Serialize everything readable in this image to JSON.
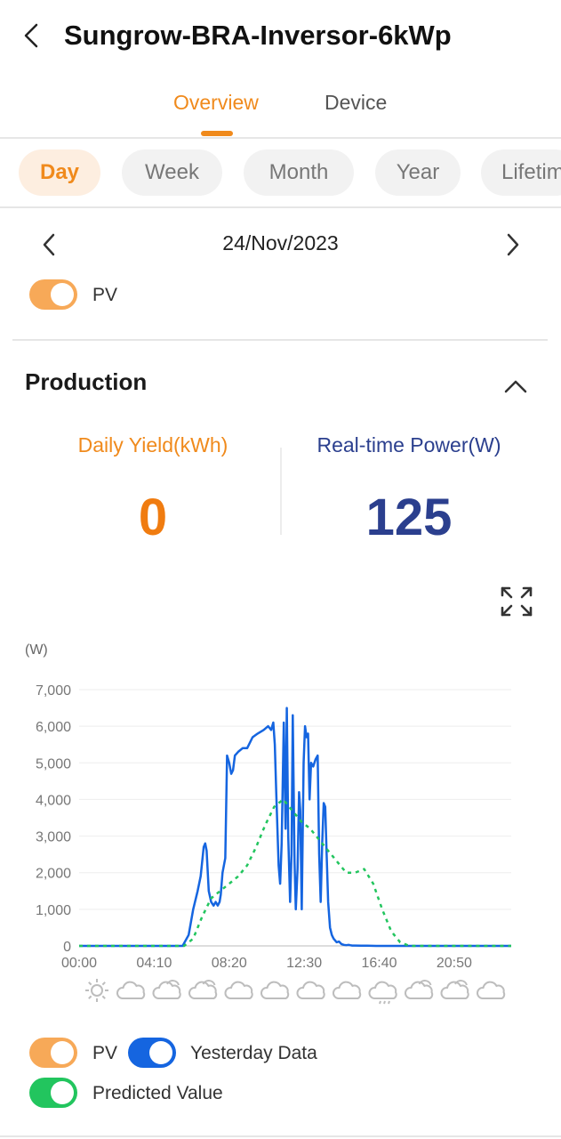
{
  "header": {
    "title": "Sungrow-BRA-Inversor-6kWp"
  },
  "tabs": [
    {
      "label": "Overview",
      "active": true
    },
    {
      "label": "Device",
      "active": false
    }
  ],
  "periods": [
    {
      "label": "Day",
      "active": true
    },
    {
      "label": "Week",
      "active": false
    },
    {
      "label": "Month",
      "active": false
    },
    {
      "label": "Year",
      "active": false
    },
    {
      "label": "Lifetime",
      "active": false
    }
  ],
  "date_selector": {
    "date": "24/Nov/2023"
  },
  "top_toggle": {
    "label": "PV",
    "on": true
  },
  "production": {
    "title": "Production",
    "daily_yield_label": "Daily Yield(kWh)",
    "daily_yield_value": "0",
    "realtime_power_label": "Real-time Power(W)",
    "realtime_power_value": "125"
  },
  "colors": {
    "accent": "#f08a1c",
    "pv_toggle": "#f7a958",
    "blue": "#1565e0",
    "navy": "#2b3f8e",
    "green": "#22c55e",
    "grid": "#eeeeee"
  },
  "icons": {
    "back": "chevron-left-icon",
    "prev": "chevron-left-icon",
    "next": "chevron-right-icon",
    "collapse": "chevron-up-icon",
    "expand": "expand-icon"
  },
  "weather": [
    "sunny",
    "cloudy",
    "partly-cloudy",
    "partly-cloudy",
    "cloudy",
    "cloudy",
    "cloudy",
    "cloudy",
    "rain",
    "partly-cloudy",
    "partly-cloudy",
    "cloudy"
  ],
  "chart_data": {
    "type": "line",
    "ylabel": "(W)",
    "ylim": [
      0,
      7000
    ],
    "yticks": [
      0,
      1000,
      2000,
      3000,
      4000,
      5000,
      6000,
      7000
    ],
    "ytick_labels": [
      "0",
      "1,000",
      "2,000",
      "3,000",
      "4,000",
      "5,000",
      "6,000",
      "7,000"
    ],
    "xlim": [
      0,
      1440
    ],
    "xticks": [
      0,
      250,
      500,
      750,
      1000,
      1250
    ],
    "xtick_labels": [
      "00:00",
      "04:10",
      "08:20",
      "12:30",
      "16:40",
      "20:50"
    ],
    "grid": true,
    "legend_placement": "bottom",
    "series": [
      {
        "name": "Yesterday Data",
        "style": "solid",
        "x": [
          0,
          345,
          355,
          365,
          380,
          395,
          405,
          415,
          420,
          425,
          432,
          440,
          448,
          455,
          462,
          468,
          472,
          478,
          487,
          493,
          500,
          507,
          513,
          519,
          530,
          545,
          560,
          578,
          595,
          615,
          630,
          640,
          647,
          652,
          657,
          665,
          670,
          675,
          682,
          688,
          692,
          697,
          703,
          708,
          712,
          718,
          722,
          728,
          733,
          737,
          742,
          748,
          753,
          758,
          763,
          768,
          773,
          780,
          788,
          795,
          800,
          805,
          810,
          815,
          820,
          825,
          830,
          836,
          842,
          848,
          853,
          858,
          866,
          874,
          882,
          890,
          898,
          903,
          910,
          920,
          940,
          960,
          990,
          1100,
          1440
        ],
        "y": [
          0,
          0,
          150,
          300,
          1000,
          1500,
          1900,
          2700,
          2800,
          2600,
          1500,
          1200,
          1100,
          1200,
          1100,
          1200,
          1400,
          2000,
          2400,
          5200,
          5000,
          4700,
          4800,
          5200,
          5300,
          5400,
          5400,
          5700,
          5800,
          5900,
          6000,
          5900,
          6100,
          5500,
          4200,
          2200,
          1700,
          2800,
          6100,
          3200,
          6500,
          3000,
          1200,
          2500,
          6300,
          2300,
          1000,
          2100,
          4200,
          3700,
          1000,
          5000,
          6000,
          5700,
          5800,
          4000,
          5000,
          4900,
          5100,
          5200,
          2500,
          1200,
          2800,
          3900,
          3800,
          2500,
          1200,
          500,
          300,
          200,
          150,
          100,
          120,
          50,
          30,
          20,
          30,
          20,
          10,
          10,
          5,
          5,
          0,
          0,
          0
        ]
      },
      {
        "name": "Predicted Value",
        "style": "dashed",
        "x": [
          0,
          350,
          380,
          410,
          440,
          470,
          500,
          530,
          560,
          590,
          620,
          650,
          680,
          710,
          740,
          770,
          800,
          830,
          860,
          890,
          920,
          950,
          980,
          1010,
          1040,
          1070,
          1100,
          1440
        ],
        "y": [
          0,
          0,
          200,
          800,
          1300,
          1500,
          1700,
          1900,
          2200,
          2700,
          3300,
          3800,
          4000,
          3700,
          3400,
          3200,
          2900,
          2600,
          2300,
          2000,
          2000,
          2100,
          1700,
          1000,
          400,
          100,
          0,
          0
        ]
      }
    ]
  },
  "legend": [
    {
      "label": "PV",
      "on": true
    },
    {
      "label": "Yesterday Data",
      "on": true
    },
    {
      "label": "Predicted Value",
      "on": true
    }
  ]
}
